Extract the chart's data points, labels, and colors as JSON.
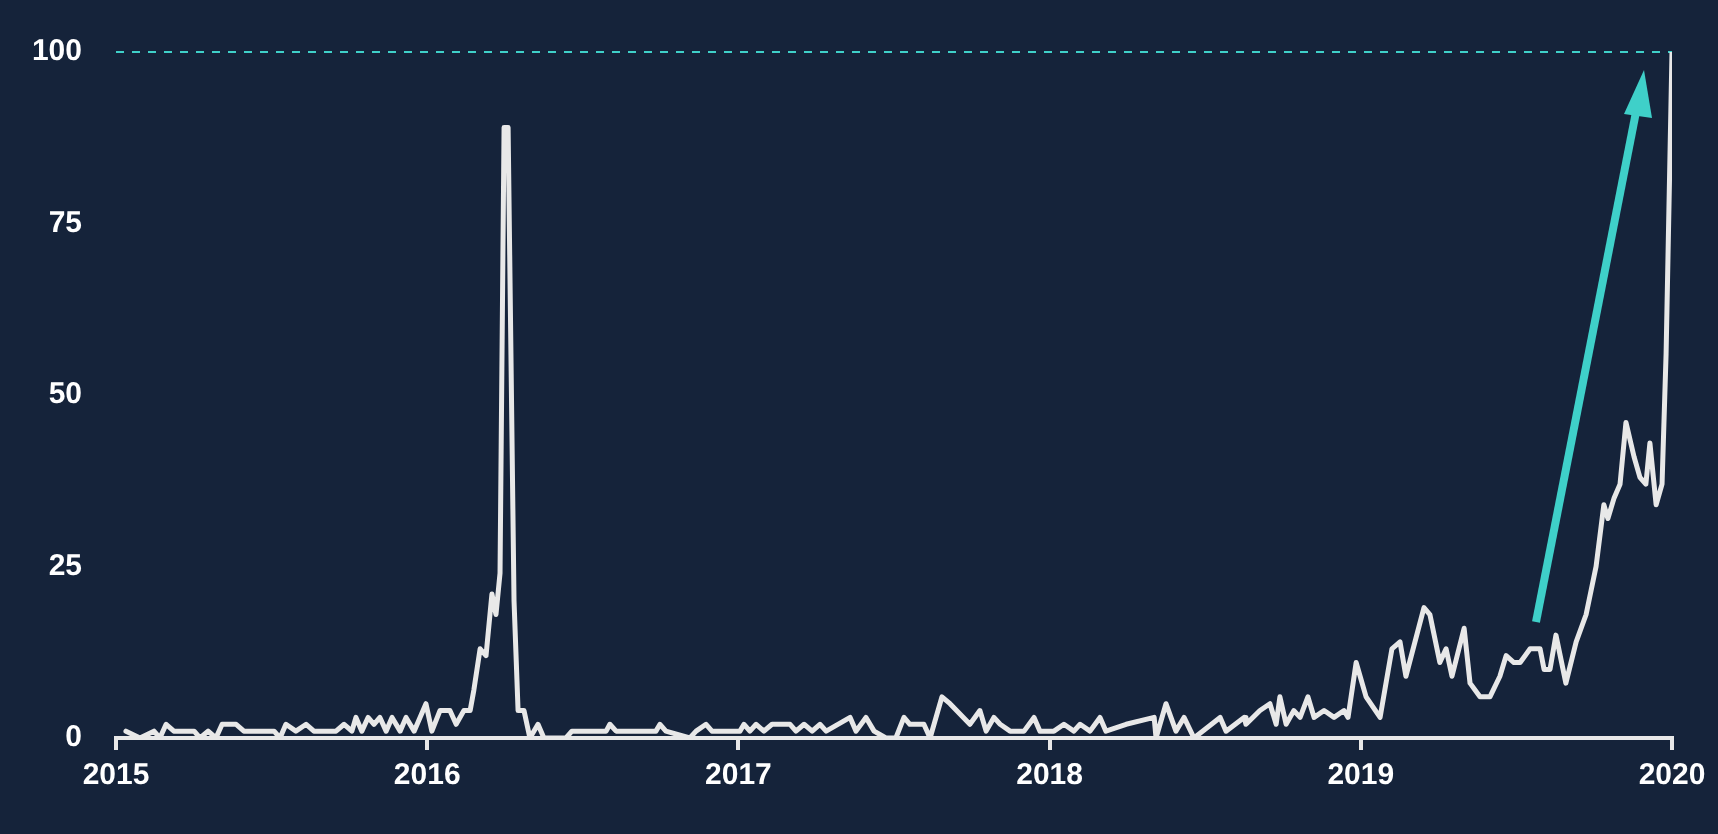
{
  "chart_data": {
    "type": "line",
    "xlim": [
      2015,
      2020
    ],
    "ylim": [
      0,
      100
    ],
    "xticks": [
      2015,
      2016,
      2017,
      2018,
      2019,
      2020
    ],
    "yticks": [
      0,
      25,
      50,
      75,
      100
    ],
    "grid": false,
    "marker": "none",
    "line_style": "solid",
    "ref_lines": [
      {
        "axis": "y",
        "value": 100,
        "color": "#3fd0c9",
        "line_style": "dashed"
      }
    ],
    "x": [
      2015.032,
      2015.077,
      2015.122,
      2015.141,
      2015.161,
      2015.186,
      2015.251,
      2015.27,
      2015.296,
      2015.321,
      2015.341,
      2015.386,
      2015.411,
      2015.508,
      2015.527,
      2015.546,
      2015.578,
      2015.611,
      2015.636,
      2015.707,
      2015.733,
      2015.758,
      2015.771,
      2015.79,
      2015.81,
      2015.829,
      2015.848,
      2015.868,
      2015.887,
      2015.913,
      2015.932,
      2015.958,
      2015.996,
      2016.015,
      2016.041,
      2016.073,
      2016.093,
      2016.118,
      2016.138,
      2016.15,
      2016.17,
      2016.189,
      2016.208,
      2016.221,
      2016.234,
      2016.247,
      2016.26,
      2016.279,
      2016.292,
      2016.311,
      2016.33,
      2016.356,
      2016.375,
      2016.446,
      2016.465,
      2016.575,
      2016.587,
      2016.607,
      2016.735,
      2016.748,
      2016.767,
      2016.844,
      2016.864,
      2016.896,
      2016.915,
      2017.005,
      2017.018,
      2017.037,
      2017.057,
      2017.082,
      2017.108,
      2017.166,
      2017.185,
      2017.211,
      2017.237,
      2017.262,
      2017.282,
      2017.359,
      2017.378,
      2017.41,
      2017.436,
      2017.474,
      2017.506,
      2017.532,
      2017.551,
      2017.596,
      2017.616,
      2017.654,
      2017.68,
      2017.744,
      2017.776,
      2017.796,
      2017.821,
      2017.841,
      2017.873,
      2017.918,
      2017.95,
      2017.969,
      2018.014,
      2018.046,
      2018.078,
      2018.098,
      2018.13,
      2018.162,
      2018.181,
      2018.246,
      2018.336,
      2018.342,
      2018.374,
      2018.406,
      2018.432,
      2018.464,
      2018.548,
      2018.567,
      2018.625,
      2018.631,
      2018.676,
      2018.708,
      2018.728,
      2018.74,
      2018.76,
      2018.785,
      2018.805,
      2018.83,
      2018.85,
      2018.882,
      2018.914,
      2018.946,
      2018.959,
      2018.985,
      2019.017,
      2019.062,
      2019.1,
      2019.126,
      2019.145,
      2019.203,
      2019.222,
      2019.254,
      2019.274,
      2019.293,
      2019.332,
      2019.351,
      2019.383,
      2019.415,
      2019.447,
      2019.467,
      2019.492,
      2019.512,
      2019.544,
      2019.576,
      2019.589,
      2019.608,
      2019.627,
      2019.659,
      2019.692,
      2019.724,
      2019.756,
      2019.781,
      2019.794,
      2019.814,
      2019.833,
      2019.852,
      2019.878,
      2019.897,
      2019.916,
      2019.929,
      2019.949,
      2019.968,
      2019.981,
      2020.0
    ],
    "series": [
      {
        "color": "#e8e8e8",
        "values": [
          1,
          0,
          1,
          0,
          2,
          1,
          1,
          0,
          1,
          0,
          2,
          2,
          1,
          1,
          0,
          2,
          1,
          2,
          1,
          1,
          2,
          1,
          3,
          1,
          3,
          2,
          3,
          1,
          3,
          1,
          3,
          1,
          5,
          1,
          4,
          4,
          2,
          4,
          4,
          7,
          13,
          12,
          21,
          18,
          24,
          89,
          89,
          20,
          4,
          4,
          0,
          2,
          0,
          0,
          1,
          1,
          2,
          1,
          1,
          2,
          1,
          0,
          1,
          2,
          1,
          1,
          2,
          1,
          2,
          1,
          2,
          2,
          1,
          2,
          1,
          2,
          1,
          3,
          1,
          3,
          1,
          0,
          0,
          3,
          2,
          2,
          0,
          6,
          5,
          2,
          4,
          1,
          3,
          2,
          1,
          1,
          3,
          1,
          1,
          2,
          1,
          2,
          1,
          3,
          1,
          2,
          3,
          0,
          5,
          1,
          3,
          0,
          3,
          1,
          3,
          2,
          4,
          5,
          2,
          6,
          2,
          4,
          3,
          6,
          3,
          4,
          3,
          4,
          3,
          11,
          6,
          3,
          13,
          14,
          9,
          19,
          18,
          11,
          13,
          9,
          16,
          8,
          6,
          6,
          9,
          12,
          11,
          11,
          13,
          13,
          10,
          10,
          15,
          8,
          14,
          18,
          25,
          34,
          32,
          35,
          37,
          46,
          41,
          38,
          37,
          43,
          34,
          37,
          56,
          100
        ]
      }
    ]
  }
}
